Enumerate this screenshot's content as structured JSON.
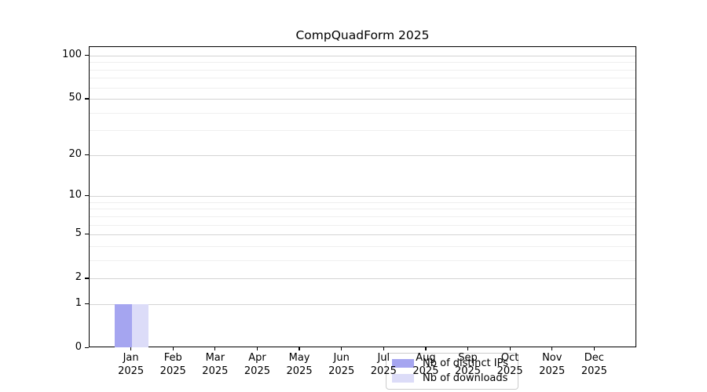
{
  "chart_data": {
    "type": "bar",
    "title": "CompQuadForm 2025",
    "categories": [
      "Jan",
      "Feb",
      "Mar",
      "Apr",
      "May",
      "Jun",
      "Jul",
      "Aug",
      "Sep",
      "Oct",
      "Nov",
      "Dec"
    ],
    "x_year_label": "2025",
    "series": [
      {
        "name": "Nb of distinct IPs",
        "color": "#a5a5f0",
        "values": [
          1,
          0,
          0,
          0,
          0,
          0,
          0,
          0,
          0,
          0,
          0,
          0
        ]
      },
      {
        "name": "Nb of downloads",
        "color": "#dcdcf8",
        "values": [
          1,
          0,
          0,
          0,
          0,
          0,
          0,
          0,
          0,
          0,
          0,
          0
        ]
      }
    ],
    "xlabel": "",
    "ylabel": "",
    "yscale": "log1p",
    "yticks": [
      0,
      1,
      2,
      5,
      10,
      20,
      50,
      100
    ],
    "yticks_minor": [
      3,
      4,
      6,
      7,
      8,
      9,
      30,
      40,
      60,
      70,
      80,
      90
    ],
    "ylim": [
      0,
      115
    ],
    "grid": true,
    "legend_position": "lower center"
  }
}
